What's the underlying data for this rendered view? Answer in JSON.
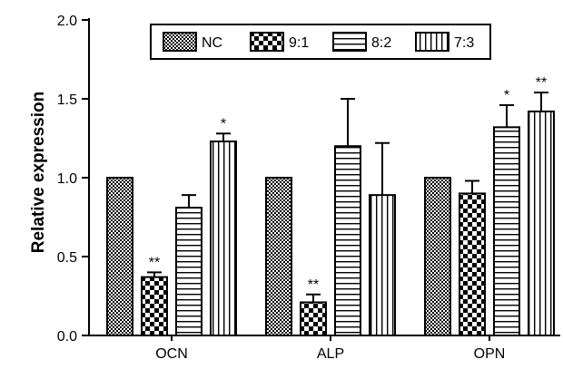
{
  "chart_data": {
    "type": "bar",
    "title": "",
    "xlabel": "",
    "ylabel": "Relative expression",
    "ylim": [
      0.0,
      2.0
    ],
    "yticks": [
      "0.0",
      "0.5",
      "1.0",
      "1.5",
      "2.0"
    ],
    "grid": false,
    "legend_position": "top",
    "categories": [
      "OCN",
      "ALP",
      "OPN"
    ],
    "series": [
      {
        "name": "NC",
        "pattern": "fine-checker",
        "values": [
          1.0,
          1.0,
          1.0
        ],
        "errors": [
          0,
          0,
          0
        ],
        "significance": [
          "",
          "",
          ""
        ]
      },
      {
        "name": "9:1",
        "pattern": "checker",
        "values": [
          0.37,
          0.21,
          0.9
        ],
        "errors": [
          0.03,
          0.05,
          0.08
        ],
        "significance": [
          "**",
          "**",
          ""
        ]
      },
      {
        "name": "8:2",
        "pattern": "horizontal",
        "values": [
          0.81,
          1.2,
          1.32
        ],
        "errors": [
          0.08,
          0.3,
          0.14
        ],
        "significance": [
          "",
          "",
          "*"
        ]
      },
      {
        "name": "7:3",
        "pattern": "vertical",
        "values": [
          1.23,
          0.89,
          1.42
        ],
        "errors": [
          0.05,
          0.33,
          0.12
        ],
        "significance": [
          "*",
          "",
          "**"
        ]
      }
    ]
  }
}
